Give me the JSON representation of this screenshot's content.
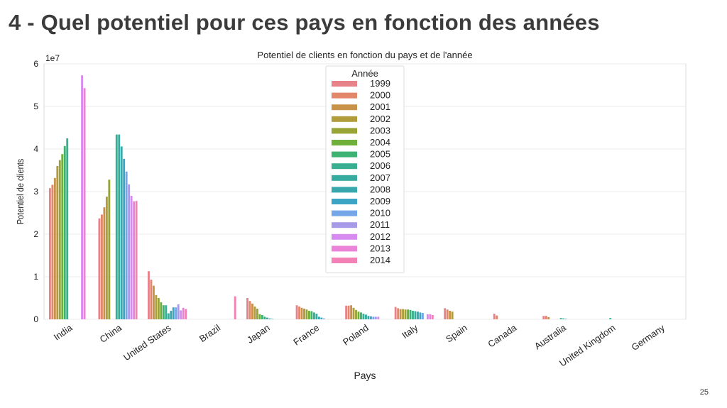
{
  "slide": {
    "title": "4 - Quel potentiel pour ces pays en fonction des années",
    "page_number": "25"
  },
  "chart_data": {
    "type": "bar",
    "title": "Potentiel de clients en fonction du pays et de l'année",
    "xlabel": "Pays",
    "ylabel": "Potentiel de clients",
    "y_offset_text": "1e7",
    "ylim": [
      0,
      6
    ],
    "y_ticks": [
      0,
      1,
      2,
      3,
      4,
      5,
      6
    ],
    "grid": true,
    "legend_title": "Année",
    "legend_position": "upper-center",
    "categories": [
      "India",
      "China",
      "United States",
      "Brazil",
      "Japan",
      "France",
      "Poland",
      "Italy",
      "Spain",
      "Canada",
      "Australia",
      "United Kingdom",
      "Germany"
    ],
    "series": [
      {
        "name": "1999",
        "color": "#e8828a",
        "values": [
          3.08,
          2.37,
          1.13,
          0,
          0.5,
          0.33,
          0.32,
          0.29,
          0.26,
          0.13,
          0.08,
          0,
          0
        ]
      },
      {
        "name": "2000",
        "color": "#e2876a",
        "values": [
          3.16,
          2.46,
          0.93,
          0,
          0.43,
          0.3,
          0.32,
          0.26,
          0.23,
          0.09,
          0.08,
          0,
          0
        ]
      },
      {
        "name": "2001",
        "color": "#c99249",
        "values": [
          3.32,
          2.63,
          0.79,
          0,
          0.37,
          0.27,
          0.33,
          0.24,
          0.2,
          0,
          0.05,
          0,
          0
        ]
      },
      {
        "name": "2002",
        "color": "#b09c3b",
        "values": [
          3.6,
          2.88,
          0.57,
          0,
          0.3,
          0.25,
          0.27,
          0.24,
          0.18,
          0,
          0,
          0,
          0
        ]
      },
      {
        "name": "2003",
        "color": "#99a437",
        "values": [
          3.74,
          3.28,
          0.5,
          0,
          0.25,
          0.23,
          0.22,
          0.23,
          0,
          0,
          0,
          0,
          0
        ]
      },
      {
        "name": "2004",
        "color": "#6fb03b",
        "values": [
          3.88,
          0,
          0.4,
          0,
          0.12,
          0.2,
          0.18,
          0.23,
          0,
          0,
          0,
          0,
          0
        ]
      },
      {
        "name": "2005",
        "color": "#3db272",
        "values": [
          4.07,
          0,
          0.33,
          0,
          0.1,
          0.19,
          0.16,
          0.22,
          0,
          0,
          0,
          0,
          0
        ]
      },
      {
        "name": "2006",
        "color": "#38af90",
        "values": [
          4.25,
          4.34,
          0.33,
          0,
          0.06,
          0.16,
          0.13,
          0.2,
          0,
          0,
          0.03,
          0.03,
          0
        ]
      },
      {
        "name": "2007",
        "color": "#37ab9f",
        "values": [
          0,
          4.34,
          0.14,
          0,
          0.04,
          0.13,
          0.11,
          0.19,
          0,
          0,
          0.02,
          0,
          0
        ]
      },
      {
        "name": "2008",
        "color": "#39a8ad",
        "values": [
          0,
          4.06,
          0.2,
          0,
          0.02,
          0.06,
          0.08,
          0.18,
          0,
          0,
          0.01,
          0,
          0
        ]
      },
      {
        "name": "2009",
        "color": "#3ca5c6",
        "values": [
          0,
          3.77,
          0.28,
          0,
          0.01,
          0.04,
          0.07,
          0.16,
          0,
          0,
          0,
          0,
          0
        ]
      },
      {
        "name": "2010",
        "color": "#74a6e8",
        "values": [
          0,
          3.47,
          0.28,
          0,
          0,
          0.02,
          0.06,
          0.15,
          0,
          0,
          0,
          0,
          0
        ]
      },
      {
        "name": "2011",
        "color": "#a79ae8",
        "values": [
          0,
          3.17,
          0.35,
          0,
          0,
          0,
          0.06,
          0,
          0,
          0,
          0,
          0,
          0
        ]
      },
      {
        "name": "2012",
        "color": "#d78af0",
        "values": [
          5.73,
          2.9,
          0.21,
          0,
          0,
          0,
          0.06,
          0.12,
          0,
          0,
          0,
          0,
          0
        ]
      },
      {
        "name": "2013",
        "color": "#eb83d8",
        "values": [
          5.43,
          2.77,
          0.27,
          0,
          0,
          0,
          0,
          0.12,
          0,
          0,
          0,
          0,
          0
        ]
      },
      {
        "name": "2014",
        "color": "#f282b5",
        "values": [
          0,
          2.78,
          0.24,
          0.54,
          0,
          0,
          0,
          0.1,
          0,
          0,
          0,
          0,
          0
        ]
      }
    ]
  }
}
